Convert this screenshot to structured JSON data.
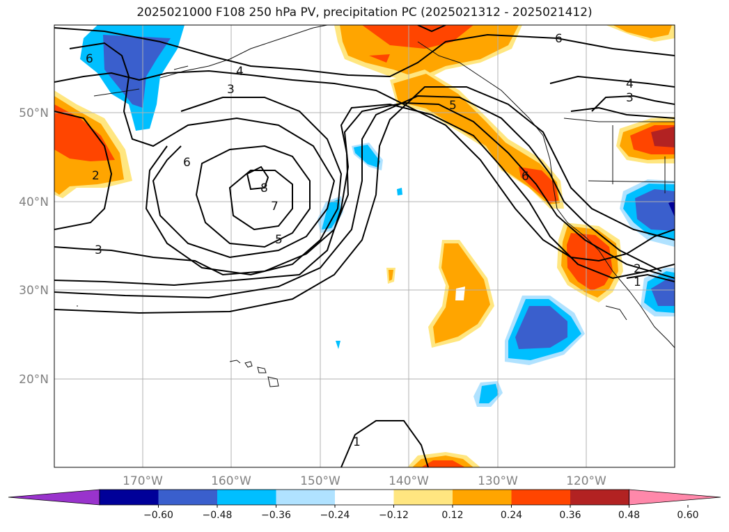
{
  "title": "2025021000 F108 250 hPa PV, precipitation PC (2025021312 - 2025021412)",
  "lat_labels": [
    "50°N",
    "40°N",
    "30°N",
    "20°N"
  ],
  "lon_labels": [
    "170°W",
    "160°W",
    "150°W",
    "140°W",
    "130°W",
    "120°W"
  ],
  "colorbar": {
    "ticks": [
      "−0.60",
      "−0.48",
      "−0.36",
      "−0.24",
      "−0.12",
      "0.12",
      "0.24",
      "0.36",
      "0.48",
      "0.60"
    ],
    "colors": [
      "#9933cc",
      "#000099",
      "#3a5fcd",
      "#00bfff",
      "#b0e2ff",
      "#ffffff",
      "#ffe680",
      "#ffa500",
      "#ff4500",
      "#b22222",
      "#ff88aa"
    ]
  },
  "contour_labels": {
    "c6_topleft": "6",
    "c4_north": "4",
    "c3_north": "3",
    "c6_west": "6",
    "c2_west": "2",
    "c3_southwest": "3",
    "c8": "8",
    "c7": "7",
    "c5_center": "5",
    "c5_north": "5",
    "c6_coast": "6",
    "c6_ne": "6",
    "c4_ne": "4",
    "c3_ne": "3",
    "c2_se": "2",
    "c1_se": "1",
    "c1_south": "1"
  }
}
